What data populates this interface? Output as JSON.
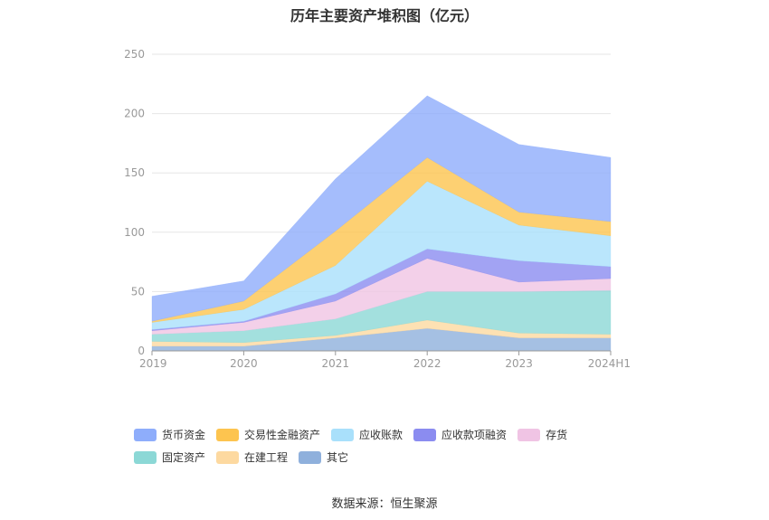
{
  "chart_data": {
    "type": "area",
    "stacked": true,
    "title": "历年主要资产堆积图（亿元）",
    "x": [
      "2019",
      "2020",
      "2021",
      "2022",
      "2023",
      "2024H1"
    ],
    "ylim": [
      0,
      250
    ],
    "yticks": [
      0,
      50,
      100,
      150,
      200,
      250
    ],
    "grid": true,
    "legend_position": "bottom",
    "series": [
      {
        "name": "其它",
        "color": "#8fb0dc",
        "values": [
          4,
          4,
          11,
          19,
          11,
          11
        ]
      },
      {
        "name": "在建工程",
        "color": "#fdd9a0",
        "values": [
          4,
          3,
          2,
          7,
          4,
          3
        ]
      },
      {
        "name": "固定资产",
        "color": "#8cd8d6",
        "values": [
          6,
          10,
          14,
          24,
          35,
          37
        ]
      },
      {
        "name": "存货",
        "color": "#f0c4e4",
        "values": [
          3,
          7,
          15,
          28,
          8,
          10
        ]
      },
      {
        "name": "应收款项融资",
        "color": "#8b8cf0",
        "values": [
          1,
          1,
          6,
          8,
          18,
          10
        ]
      },
      {
        "name": "应收账款",
        "color": "#a9e0fb",
        "values": [
          6,
          10,
          24,
          57,
          30,
          26
        ]
      },
      {
        "name": "交易性金融资产",
        "color": "#fdc44f",
        "values": [
          1,
          7,
          29,
          20,
          11,
          12
        ]
      },
      {
        "name": "货币资金",
        "color": "#8eadfb",
        "values": [
          21,
          17,
          44,
          52,
          57,
          54
        ]
      }
    ],
    "legend_order": [
      "货币资金",
      "交易性金融资产",
      "应收账款",
      "应收款项融资",
      "存货",
      "固定资产",
      "在建工程",
      "其它"
    ]
  },
  "source_text": "数据来源：恒生聚源"
}
